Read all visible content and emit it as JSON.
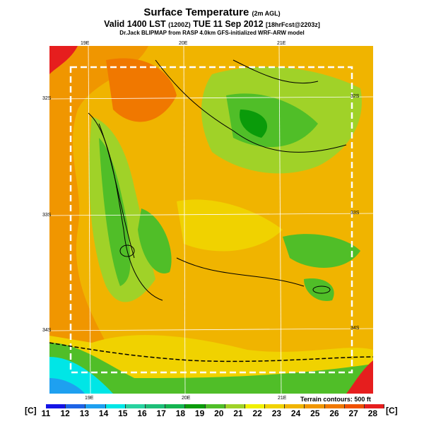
{
  "header": {
    "title": "Surface Temperature",
    "title_suffix": "(2m AGL)",
    "valid": "Valid 1400 LST",
    "valid_zulu": "(1200Z)",
    "valid_date": "TUE 11 Sep 2012",
    "forecast": "[18hrFcst@2203z]",
    "subtitle": "Dr.Jack BLIPMAP from RASP 4.0km GFS-initialized WRF-ARW model"
  },
  "axes": {
    "lon_top": [
      "19E",
      "20E",
      "21E"
    ],
    "lon_bottom": [
      "19E",
      "20E",
      "21E"
    ],
    "lat_left": [
      "32S",
      "33S",
      "34S"
    ],
    "lat_right": [
      "32S",
      "33S",
      "34S"
    ]
  },
  "legend": {
    "unit": "[C]",
    "ticks": [
      "11",
      "12",
      "13",
      "14",
      "15",
      "16",
      "17",
      "18",
      "19",
      "20",
      "21",
      "22",
      "23",
      "24",
      "25",
      "26",
      "27",
      "28"
    ],
    "colors": [
      "#1414e6",
      "#1e64e6",
      "#1ea0f0",
      "#00e6e6",
      "#28d2a0",
      "#1ebe78",
      "#14b450",
      "#0a9b0a",
      "#50be28",
      "#a0d228",
      "#f0f000",
      "#f0d200",
      "#f0b400",
      "#f09600",
      "#f07800",
      "#f05000",
      "#e61e1e",
      "#c8143c"
    ],
    "terrain_note": "Terrain contours: 500 ft"
  }
}
